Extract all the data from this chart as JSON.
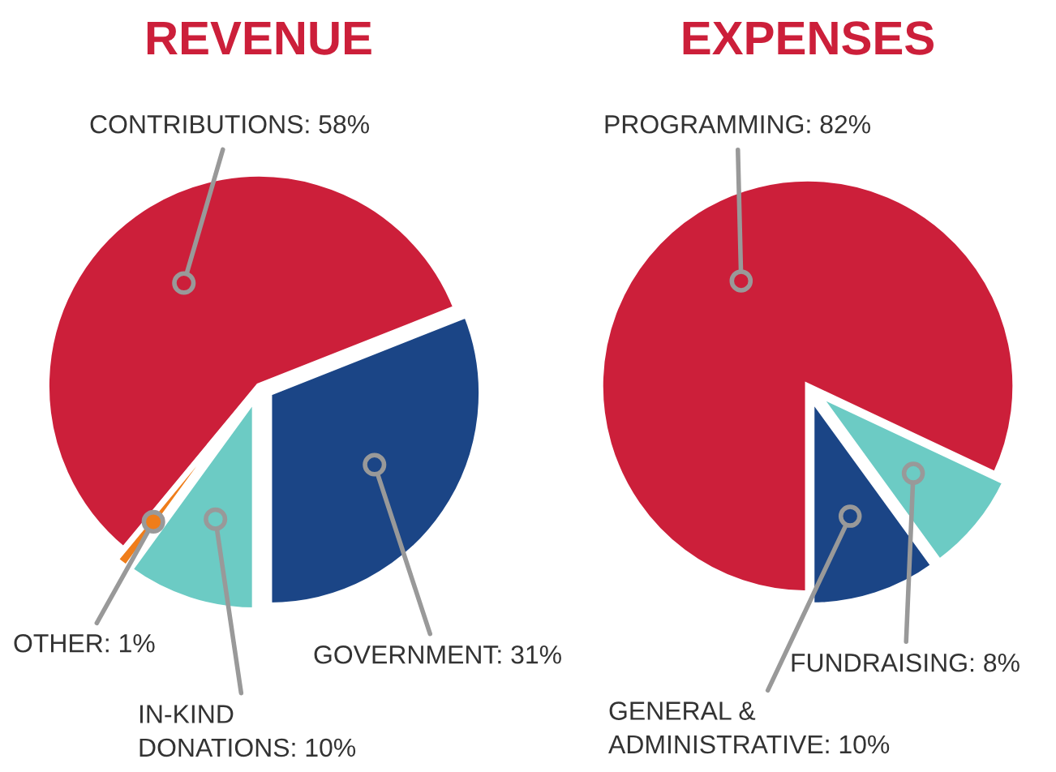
{
  "chart_data": [
    {
      "type": "pie",
      "title": "REVENUE",
      "categories": [
        "GOVERNMENT",
        "CONTRIBUTIONS",
        "OTHER",
        "IN-KIND\nDONATIONS"
      ],
      "values": [
        31,
        58,
        1,
        10
      ],
      "value_labels": [
        "31%",
        "58%",
        "1%",
        "10%"
      ],
      "colors": [
        "#1b4586",
        "#cc1f3a",
        "#ef7d1a",
        "#6ccbc4"
      ]
    },
    {
      "type": "pie",
      "title": "EXPENSES",
      "categories": [
        "GENERAL &\nADMINISTRATIVE",
        "FUNDRAISING",
        "PROGRAMMING"
      ],
      "values": [
        10,
        8,
        82
      ],
      "value_labels": [
        "10%",
        "8%",
        "82%"
      ],
      "colors": [
        "#1b4586",
        "#6ccbc4",
        "#cc1f3a"
      ]
    }
  ]
}
